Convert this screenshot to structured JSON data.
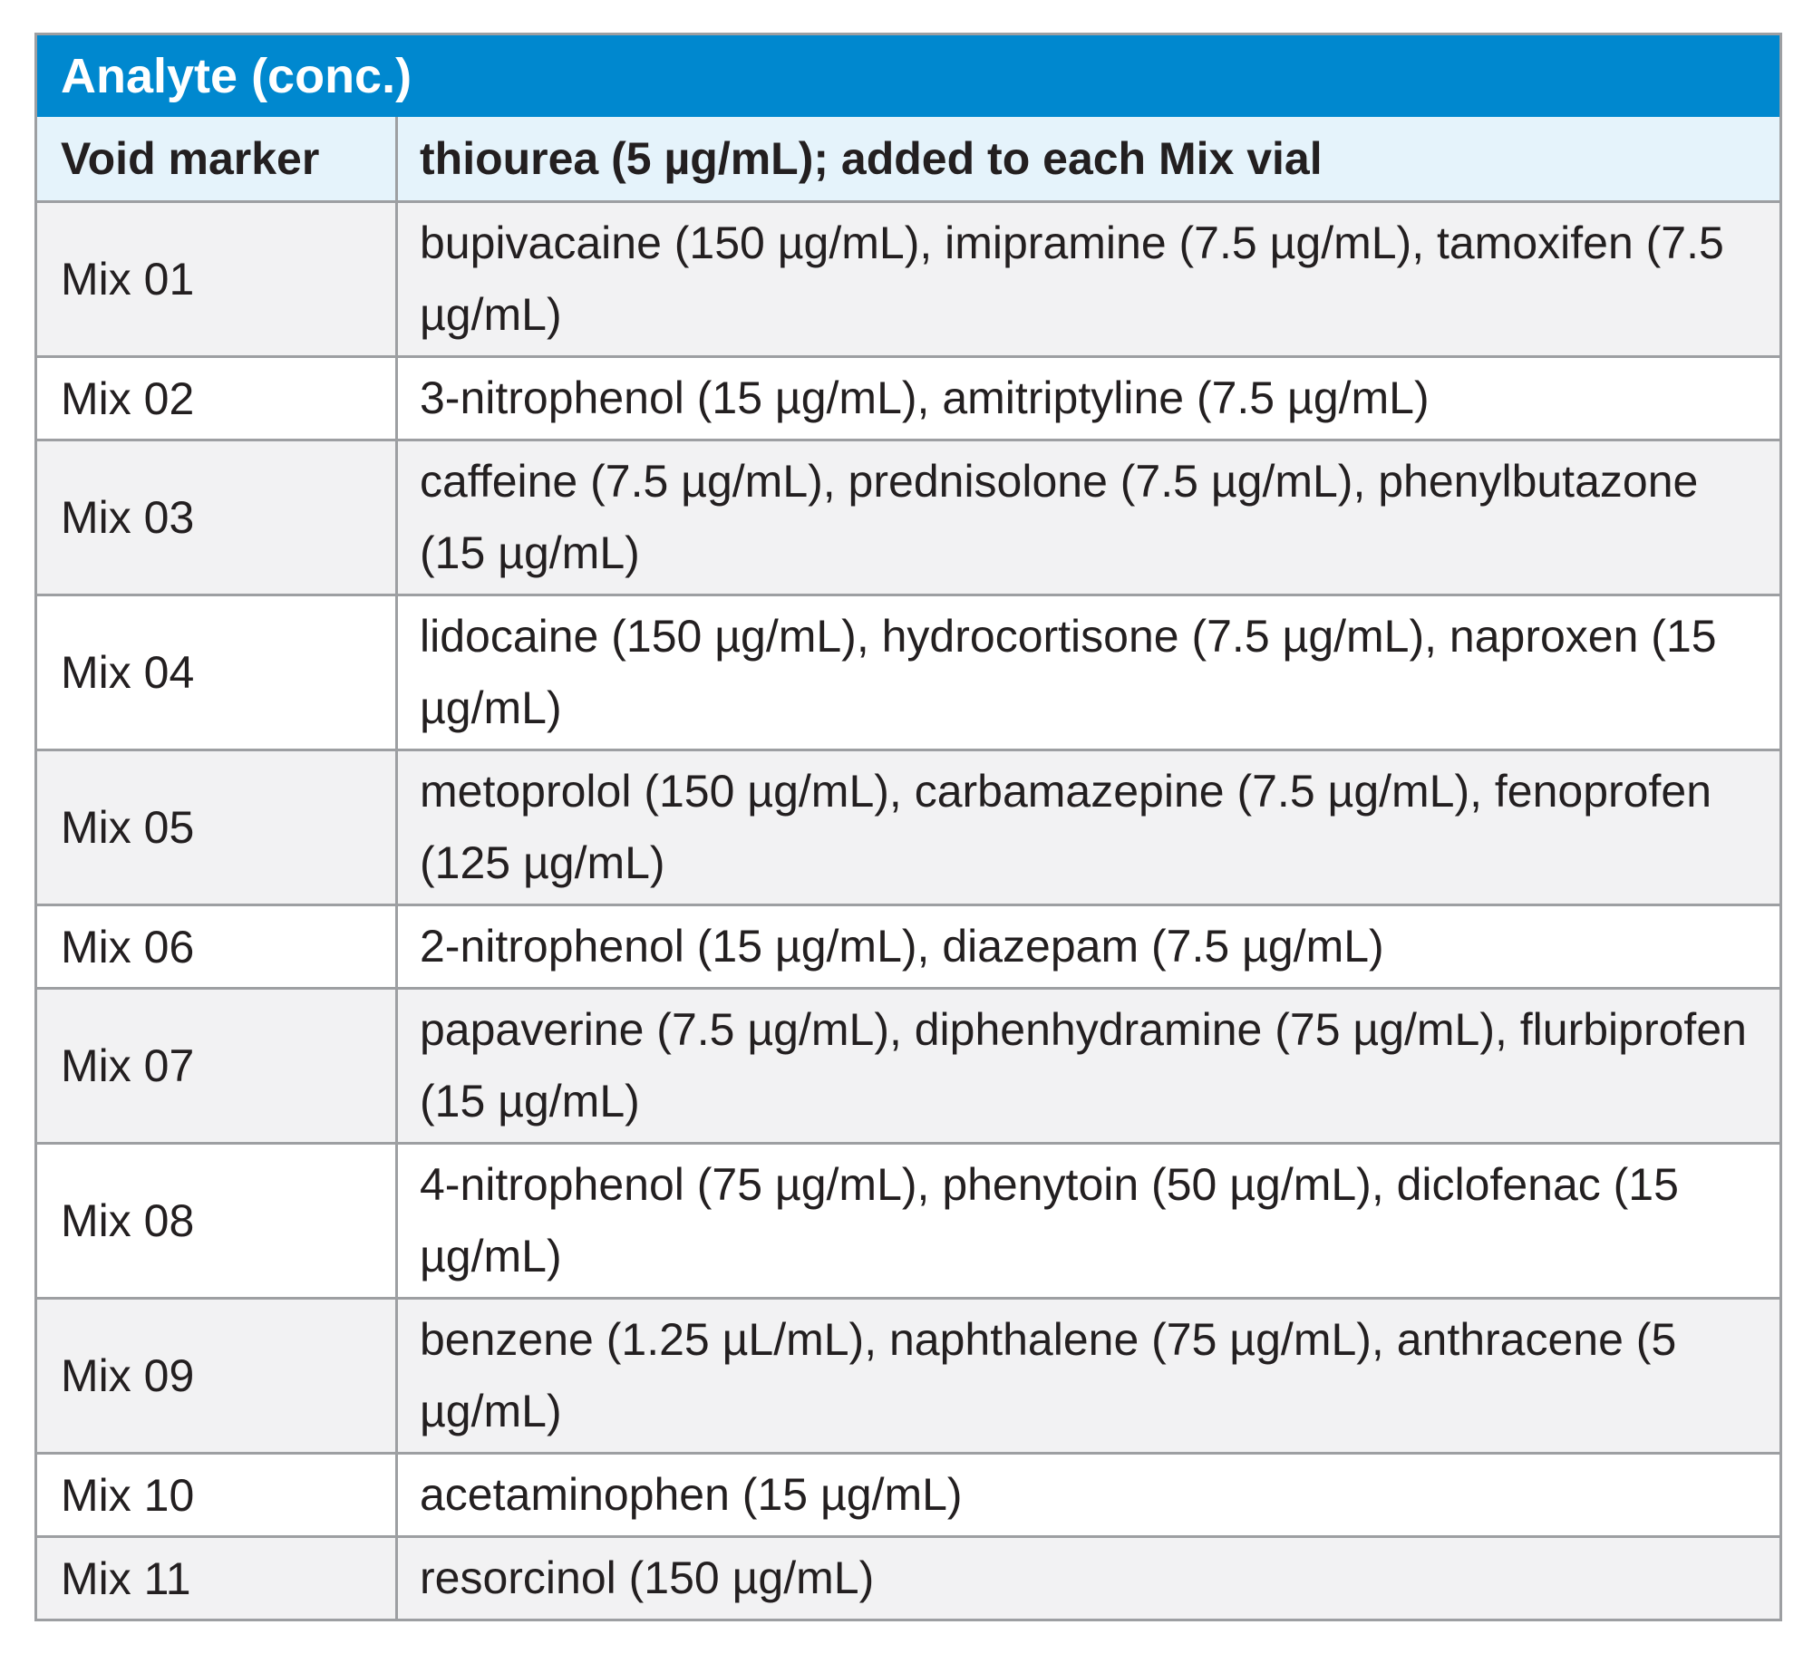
{
  "table": {
    "title": "Analyte (conc.)",
    "subheader": {
      "label": "Void marker",
      "value": "thiourea (5 µg/mL); added to each Mix vial"
    },
    "rows": [
      {
        "mix": "Mix 01",
        "analytes": "bupivacaine (150 µg/mL), imipramine (7.5 µg/mL), tamoxifen (7.5 µg/mL)"
      },
      {
        "mix": "Mix 02",
        "analytes": "3-nitrophenol (15 µg/mL), amitriptyline (7.5 µg/mL)"
      },
      {
        "mix": "Mix 03",
        "analytes": "caffeine (7.5 µg/mL), prednisolone (7.5 µg/mL), phenylbutazone (15 µg/mL)"
      },
      {
        "mix": "Mix 04",
        "analytes": "lidocaine (150 µg/mL), hydrocortisone (7.5 µg/mL), naproxen (15 µg/mL)"
      },
      {
        "mix": "Mix 05",
        "analytes": "metoprolol (150 µg/mL), carbamazepine (7.5 µg/mL), fenoprofen (125 µg/mL)"
      },
      {
        "mix": "Mix 06",
        "analytes": "2-nitrophenol (15 µg/mL), diazepam (7.5 µg/mL)"
      },
      {
        "mix": "Mix 07",
        "analytes": "papaverine (7.5 µg/mL), diphenhydramine (75 µg/mL), flurbiprofen (15 µg/mL)"
      },
      {
        "mix": "Mix 08",
        "analytes": "4-nitrophenol (75 µg/mL), phenytoin (50 µg/mL), diclofenac (15 µg/mL)"
      },
      {
        "mix": "Mix 09",
        "analytes": "benzene (1.25 µL/mL), naphthalene (75 µg/mL), anthracene (5 µg/mL)"
      },
      {
        "mix": "Mix 10",
        "analytes": "acetaminophen (15 µg/mL)"
      },
      {
        "mix": "Mix 11",
        "analytes": "resorcinol (150 µg/mL)"
      }
    ]
  },
  "colors": {
    "title_bar": "#0088cf",
    "subheader_bg": "#e5f3fb",
    "row_shaded": "#f2f2f3",
    "border": "#9d9fa2"
  }
}
